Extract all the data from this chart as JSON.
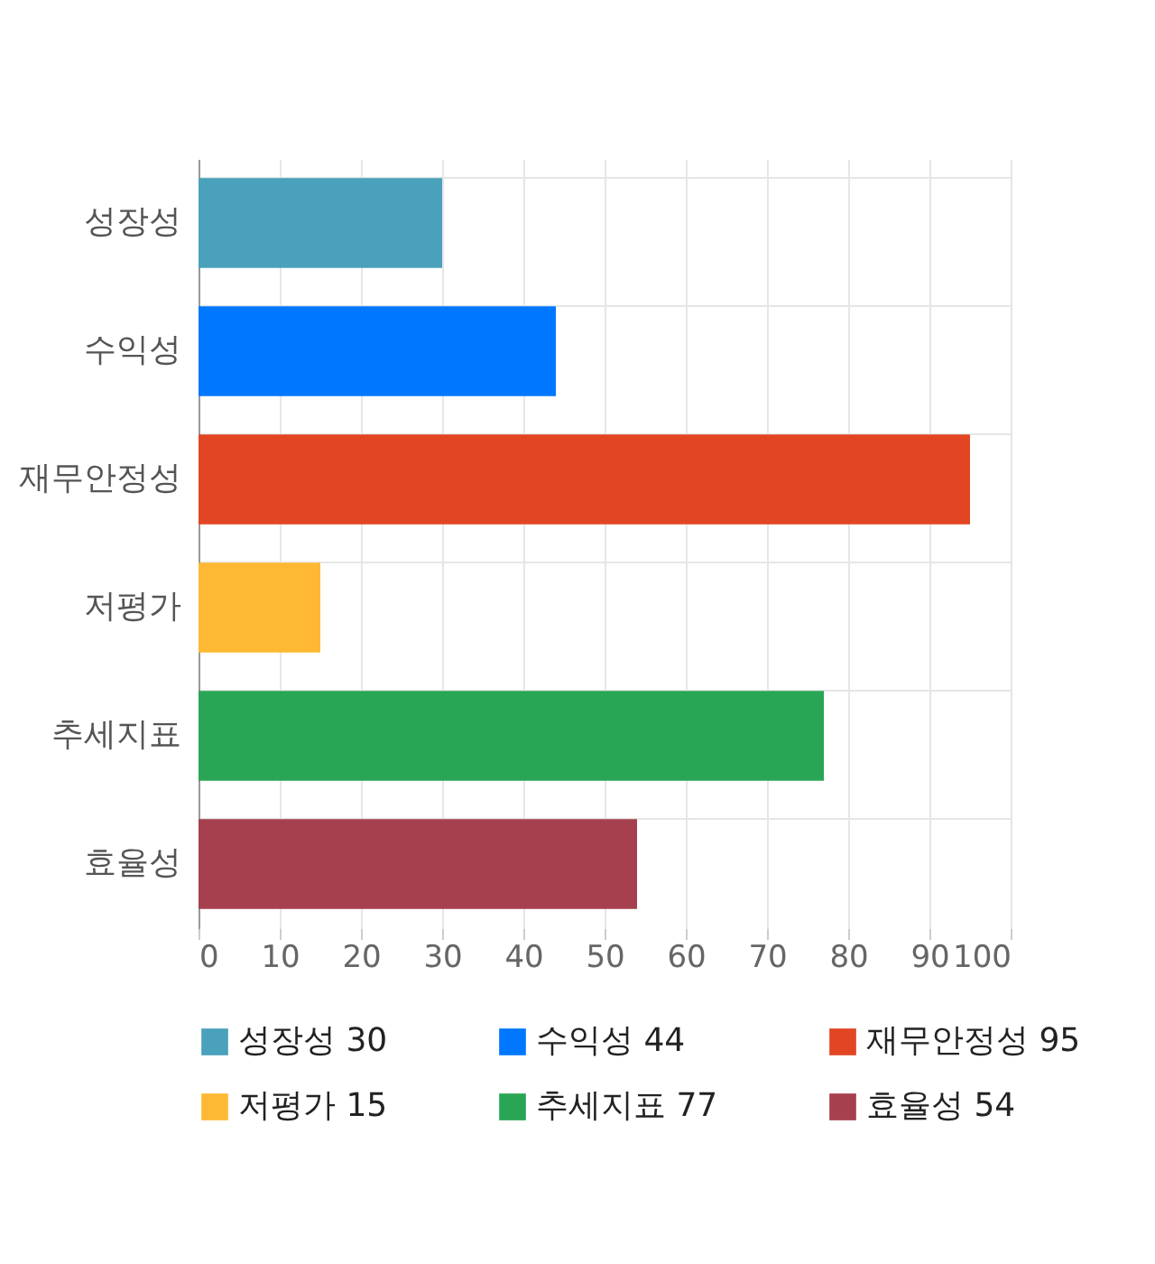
{
  "chart_data": {
    "type": "bar",
    "orientation": "horizontal",
    "categories": [
      "성장성",
      "수익성",
      "재무안정성",
      "저평가",
      "추세지표",
      "효율성"
    ],
    "series": [
      {
        "name": "성장성 30",
        "color": "#4aa1bb",
        "values": [
          30,
          null,
          null,
          null,
          null,
          null
        ]
      },
      {
        "name": "수익성 44",
        "color": "#0077ff",
        "values": [
          null,
          44,
          null,
          null,
          null,
          null
        ]
      },
      {
        "name": "재무안정성 95",
        "color": "#e24523",
        "values": [
          null,
          null,
          95,
          null,
          null,
          null
        ]
      },
      {
        "name": "저평가 15",
        "color": "#ffb833",
        "values": [
          null,
          null,
          null,
          15,
          null,
          null
        ]
      },
      {
        "name": "추세지표 77",
        "color": "#28a655",
        "values": [
          null,
          null,
          null,
          null,
          77,
          null
        ]
      },
      {
        "name": "효율성 54",
        "color": "#a6404f",
        "values": [
          null,
          null,
          null,
          null,
          null,
          54
        ]
      }
    ],
    "xlim": [
      0,
      100
    ],
    "xticks": [
      0,
      10,
      20,
      30,
      40,
      50,
      60,
      70,
      80,
      90,
      100
    ],
    "grid": true,
    "legend": "bottom"
  }
}
